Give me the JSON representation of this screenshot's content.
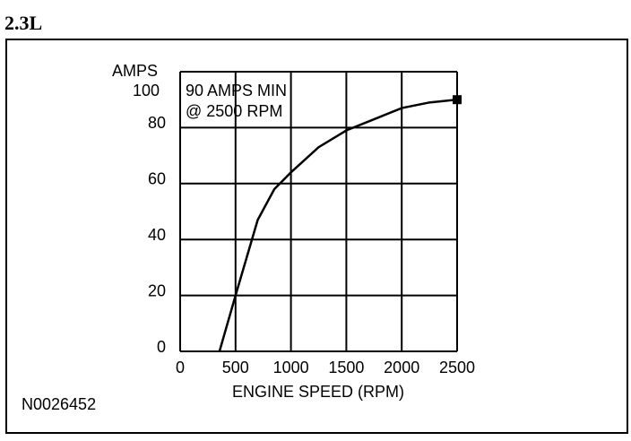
{
  "chart_data": {
    "type": "line",
    "title": "2.3L",
    "figure_id": "N0026452",
    "x_label": "ENGINE SPEED (RPM)",
    "y_label": "AMPS",
    "annotation": [
      "90 AMPS MIN",
      "@ 2500 RPM"
    ],
    "x": [
      355,
      500,
      700,
      850,
      1000,
      1250,
      1500,
      1750,
      2000,
      2250,
      2500
    ],
    "series": [
      {
        "color": "#000000",
        "values": [
          0,
          20,
          47,
          58,
          64,
          73,
          79,
          83,
          87,
          89,
          90
        ]
      }
    ],
    "xlim": [
      0,
      2500
    ],
    "xticks": [
      0,
      500,
      1000,
      1500,
      2000,
      2500
    ],
    "ylim": [
      0,
      100
    ],
    "yticks": [
      0,
      20,
      40,
      60,
      80,
      100
    ],
    "grid": true
  }
}
